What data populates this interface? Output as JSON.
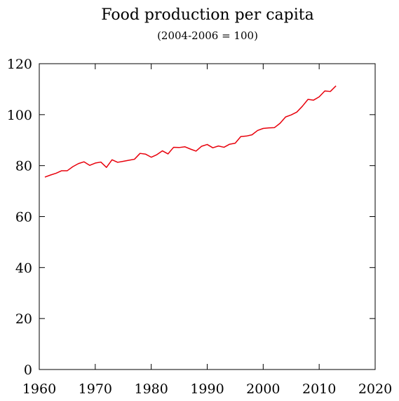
{
  "chart_data": {
    "type": "line",
    "title": "Food production per capita",
    "subtitle": "(2004-2006 = 100)",
    "xlabel": "",
    "ylabel": "",
    "xlim": [
      1960,
      2020
    ],
    "ylim": [
      0,
      120
    ],
    "x_ticks": [
      1960,
      1970,
      1980,
      1990,
      2000,
      2010,
      2020
    ],
    "y_ticks": [
      0,
      20,
      40,
      60,
      80,
      100,
      120
    ],
    "grid": false,
    "legend": "none",
    "series": [
      {
        "color": "#e8000b",
        "x": [
          1961,
          1962,
          1963,
          1964,
          1965,
          1966,
          1967,
          1968,
          1969,
          1970,
          1971,
          1972,
          1973,
          1974,
          1975,
          1976,
          1977,
          1978,
          1979,
          1980,
          1981,
          1982,
          1983,
          1984,
          1985,
          1986,
          1987,
          1988,
          1989,
          1990,
          1991,
          1992,
          1993,
          1994,
          1995,
          1996,
          1997,
          1998,
          1999,
          2000,
          2001,
          2002,
          2003,
          2004,
          2005,
          2006,
          2007,
          2008,
          2009,
          2010,
          2011,
          2012,
          2013
        ],
        "y": [
          75.5,
          76.3,
          77.0,
          78.0,
          78.0,
          79.6,
          80.8,
          81.5,
          80.1,
          81.0,
          81.4,
          79.3,
          82.3,
          81.3,
          81.7,
          82.1,
          82.5,
          84.8,
          84.5,
          83.3,
          84.3,
          85.8,
          84.6,
          87.2,
          87.1,
          87.4,
          86.5,
          85.7,
          87.6,
          88.3,
          87.0,
          87.7,
          87.2,
          88.4,
          88.8,
          91.4,
          91.6,
          92.1,
          93.8,
          94.6,
          94.8,
          94.9,
          96.6,
          99.1,
          99.9,
          101.0,
          103.3,
          106.0,
          105.7,
          107.0,
          109.3,
          109.1,
          111.3
        ]
      }
    ]
  }
}
